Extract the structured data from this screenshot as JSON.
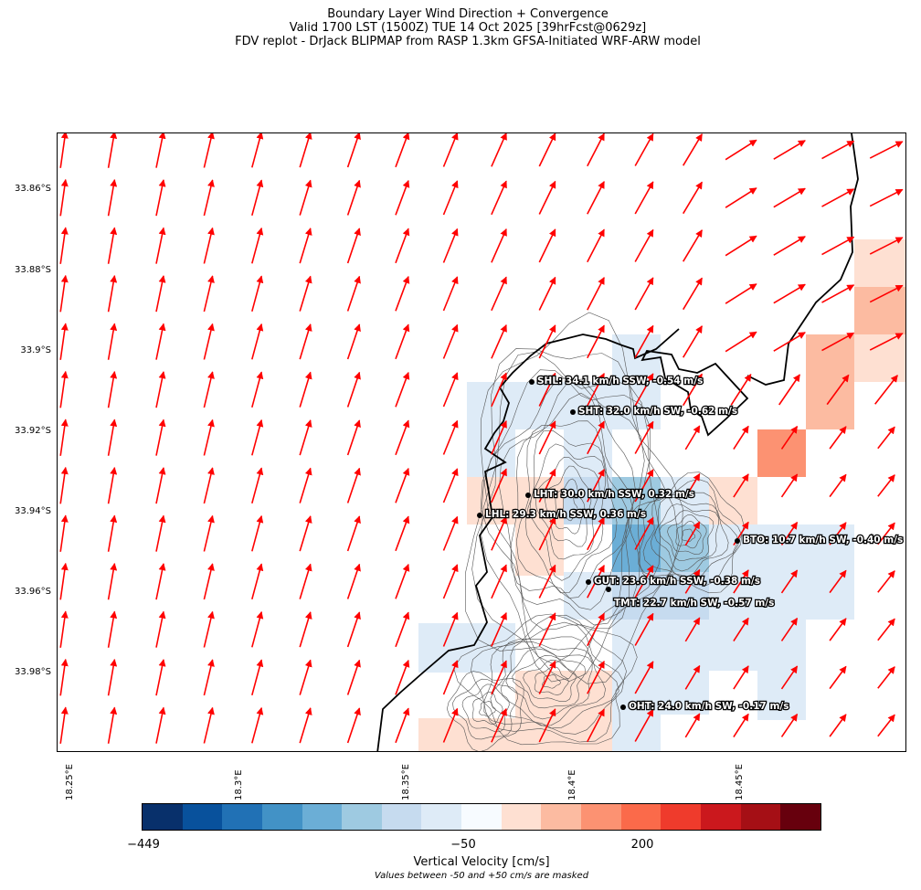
{
  "title": {
    "line1": "Boundary Layer Wind Direction + Convergence",
    "line2": "Valid 1700 LST (1500Z) TUE 14 Oct 2025 [39hrFcst@0629z]",
    "line3": "FDV replot - DrJack BLIPMAP from RASP 1.3km GFSA-Initiated WRF-ARW model"
  },
  "axes": {
    "lat_labels": [
      "33.86°S",
      "33.88°S",
      "33.9°S",
      "33.92°S",
      "33.94°S",
      "33.96°S",
      "33.98°S"
    ],
    "lon_labels": [
      "18.25°E",
      "18.3°E",
      "18.35°E",
      "18.4°E",
      "18.45°E"
    ]
  },
  "colors": {
    "wind_arrow": "#ff0000",
    "coastline": "#000000",
    "terrain_contour": "#555555"
  },
  "stations": [
    {
      "code": "SHL",
      "label": "SHL: 34.1 km/h SSW, -0.54 m/s"
    },
    {
      "code": "SHT",
      "label": "SHT: 32.0 km/h SW, -0.62 m/s"
    },
    {
      "code": "LHT",
      "label": "LHT: 30.0 km/h SSW, 0.32 m/s"
    },
    {
      "code": "LHL",
      "label": "LHL: 29.3 km/h SSW, 0.36 m/s"
    },
    {
      "code": "BTO",
      "label": "BTO: 10.7 km/h SW, -0.40 m/s"
    },
    {
      "code": "GUT",
      "label": "GUT: 23.6 km/h SSW, -0.38 m/s"
    },
    {
      "code": "TMT",
      "label": "TMT: 22.7 km/h SW, -0.57 m/s"
    },
    {
      "code": "OHT",
      "label": "OHT: 24.0 km/h SW, -0.17 m/s"
    }
  ],
  "colorbar": {
    "label": "Vertical Velocity [cm/s]",
    "note": "Values between -50 and +50 cm/s are masked",
    "tick_labels": [
      "−449",
      "−50",
      "200"
    ],
    "colors": [
      "#08306b",
      "#08519c",
      "#2171b5",
      "#4292c6",
      "#6baed6",
      "#9ecae1",
      "#c6dbef",
      "#deebf7",
      "#f7fbff",
      "#fee0d2",
      "#fcbba1",
      "#fc9272",
      "#fb6a4a",
      "#ef3b2c",
      "#cb181d",
      "#a50f15",
      "#67000d"
    ]
  }
}
